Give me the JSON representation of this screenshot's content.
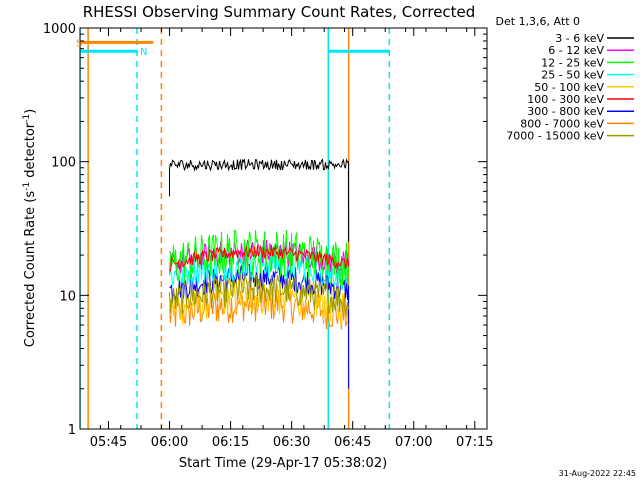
{
  "chart_data": {
    "type": "line",
    "title": "RHESSI Observing Summary Count Rates, Corrected",
    "xlabel": "Start Time (29-Apr-17 05:38:02)",
    "ylabel_main": "Corrected Count Rate (s",
    "ylabel_sup1": "-1",
    "ylabel_mid": " detector",
    "ylabel_sup2": "-1",
    "ylabel_end": ")",
    "yscale": "log",
    "ylim": [
      1,
      1000
    ],
    "xlim_minutes": [
      0,
      100
    ],
    "x_tick_minutes": [
      7,
      22,
      37,
      52,
      67,
      82,
      97
    ],
    "x_tick_labels": [
      "05:45",
      "06:00",
      "06:15",
      "06:30",
      "06:45",
      "07:00",
      "07:15"
    ],
    "y_tick_values": [
      1,
      10,
      100,
      1000
    ],
    "y_tick_labels": [
      "1",
      "10",
      "100",
      "1000"
    ],
    "legend_header": "Det 1,3,6, Att 0",
    "data_start_minute": 22,
    "data_end_minute": 66,
    "series": [
      {
        "name": "3 - 6 keV",
        "color": "#000000",
        "level": 95,
        "noise": 0.04
      },
      {
        "name": "6 - 12 keV",
        "color": "#ff00ff",
        "level": 17,
        "noise": 0.1
      },
      {
        "name": "12 - 25 keV",
        "color": "#00ff00",
        "level": 17,
        "noise": 0.18
      },
      {
        "name": "25 - 50 keV",
        "color": "#00ffff",
        "level": 14,
        "noise": 0.12
      },
      {
        "name": "50 - 100 keV",
        "color": "#ffcc00",
        "level": 8,
        "noise": 0.15
      },
      {
        "name": "100 - 300 keV",
        "color": "#ff0000",
        "level": 17,
        "noise": 0.05
      },
      {
        "name": "300 - 800 keV",
        "color": "#0000ff",
        "level": 11,
        "noise": 0.1
      },
      {
        "name": "800 - 7000 keV",
        "color": "#ff8800",
        "level": 7,
        "noise": 0.14
      },
      {
        "name": "7000 - 15000 keV",
        "color": "#999900",
        "level": 9,
        "noise": 0.12
      }
    ],
    "flags": [
      {
        "label": "S",
        "color": "#ff8800",
        "start_minute": 0,
        "end_minute": 18,
        "value": 780
      },
      {
        "label": "N",
        "color": "#00e5ff",
        "start_minute": 0,
        "end_minute": 14,
        "value": 670
      },
      {
        "label": "",
        "color": "#00e5ff",
        "start_minute": 61,
        "end_minute": 76,
        "value": 670
      }
    ],
    "vlines": [
      {
        "minute": 0,
        "color": "#00e5ff",
        "style": "solid"
      },
      {
        "minute": 2,
        "color": "#ff8800",
        "style": "solid"
      },
      {
        "minute": 14,
        "color": "#00e5ff",
        "style": "dashed"
      },
      {
        "minute": 20,
        "color": "#ff8800",
        "style": "dashed"
      },
      {
        "minute": 61,
        "color": "#00e5ff",
        "style": "solid"
      },
      {
        "minute": 66,
        "color": "#ff8800",
        "style": "solid"
      },
      {
        "minute": 76,
        "color": "#00e5ff",
        "style": "dashed"
      }
    ]
  },
  "footer": {
    "timestamp": "31-Aug-2022 22:45"
  }
}
